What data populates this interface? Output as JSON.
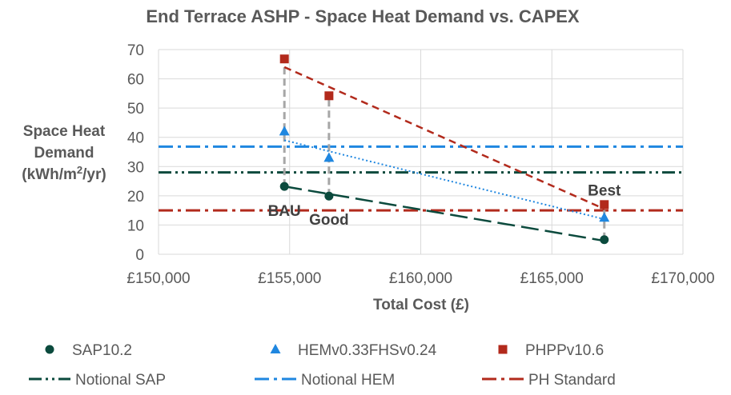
{
  "chart_data": {
    "type": "scatter",
    "title": "End Terrace ASHP - Space Heat Demand vs. CAPEX",
    "xlabel": "Total Cost (£)",
    "ylabel_lines": [
      "Space Heat",
      "Demand",
      "(kWh/m",
      "2",
      "/yr)"
    ],
    "xlim": [
      150000,
      170000
    ],
    "ylim": [
      0,
      70
    ],
    "grid": true,
    "x_ticks": [
      {
        "value": 150000,
        "label": "£150,000"
      },
      {
        "value": 155000,
        "label": "£155,000"
      },
      {
        "value": 160000,
        "label": "£160,000"
      },
      {
        "value": 165000,
        "label": "£165,000"
      },
      {
        "value": 170000,
        "label": "£170,000"
      }
    ],
    "y_ticks": [
      {
        "value": 0,
        "label": "0"
      },
      {
        "value": 10,
        "label": "10"
      },
      {
        "value": 20,
        "label": "20"
      },
      {
        "value": 30,
        "label": "30"
      },
      {
        "value": 40,
        "label": "40"
      },
      {
        "value": 50,
        "label": "50"
      },
      {
        "value": 60,
        "label": "60"
      },
      {
        "value": 70,
        "label": "70"
      }
    ],
    "series": [
      {
        "name": "SAP10.2",
        "marker": "circle",
        "color": "#0b4a3d",
        "points": [
          {
            "x": 154800,
            "y": 23.2
          },
          {
            "x": 156500,
            "y": 19.9
          },
          {
            "x": 167000,
            "y": 5.0
          }
        ],
        "trend": {
          "from": [
            154800,
            23.2
          ],
          "to": [
            167000,
            4.6
          ],
          "dash": "long-dash"
        }
      },
      {
        "name": "HEMv0.33FHSv0.24",
        "marker": "triangle",
        "color": "#1f87e0",
        "points": [
          {
            "x": 154800,
            "y": 42.0
          },
          {
            "x": 156500,
            "y": 33.0
          },
          {
            "x": 167000,
            "y": 12.5
          }
        ],
        "trend": {
          "from": [
            154800,
            39.0
          ],
          "to": [
            167000,
            12.0
          ],
          "dash": "dotted"
        }
      },
      {
        "name": "PHPPv10.6",
        "marker": "square",
        "color": "#b22a1c",
        "points": [
          {
            "x": 154800,
            "y": 66.8
          },
          {
            "x": 156500,
            "y": 54.2
          },
          {
            "x": 167000,
            "y": 17.0
          }
        ],
        "trend": {
          "from": [
            154800,
            64.0
          ],
          "to": [
            167000,
            15.5
          ],
          "dash": "dashed"
        }
      }
    ],
    "reference_lines": [
      {
        "name": "Notional SAP",
        "y": 28,
        "color": "#0b4a3d",
        "dash": "dash-dot-dot"
      },
      {
        "name": "Notional HEM",
        "y": 36.8,
        "color": "#1f87e0",
        "dash": "dash-dot"
      },
      {
        "name": "PH Standard",
        "y": 15,
        "color": "#b22a1c",
        "dash": "dash-dot"
      }
    ],
    "drop_lines": [
      {
        "x": 154800,
        "y_from": 23.2,
        "y_to": 66.8
      },
      {
        "x": 156500,
        "y_from": 19.9,
        "y_to": 54.2
      },
      {
        "x": 167000,
        "y_from": 5.0,
        "y_to": 17.0
      }
    ],
    "annotations": [
      {
        "text": "BAU",
        "x": 154800,
        "y": 15
      },
      {
        "text": "Good",
        "x": 156500,
        "y": 12
      },
      {
        "text": "Best",
        "x": 167000,
        "y": 22
      }
    ],
    "legend_position": "bottom"
  }
}
